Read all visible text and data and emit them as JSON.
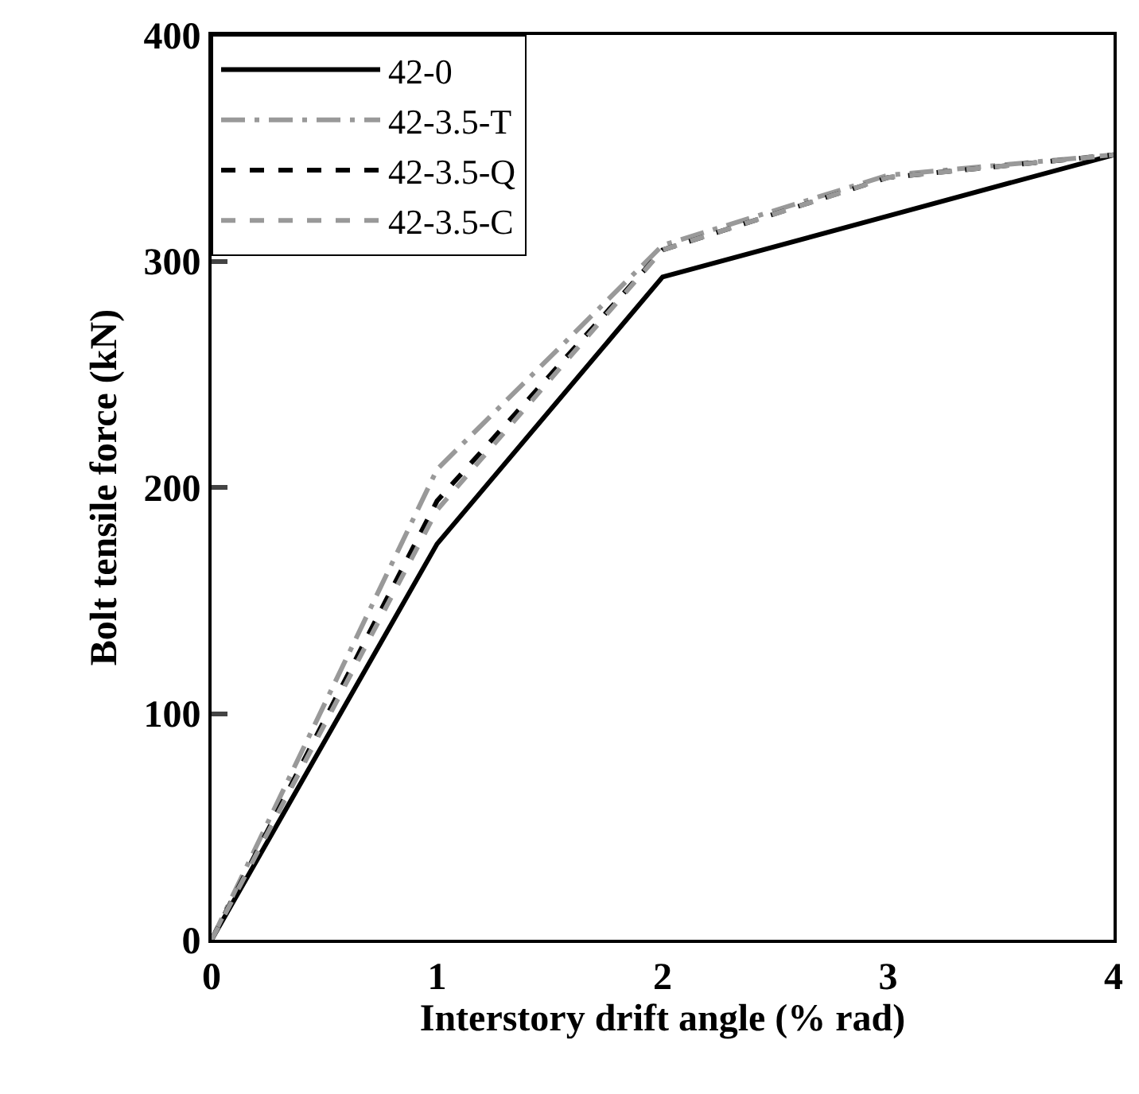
{
  "chart_data": {
    "type": "line",
    "xlabel": "Interstory drift angle (% rad)",
    "ylabel": "Bolt tensile force (kN)",
    "x": [
      0,
      1,
      2,
      3,
      4
    ],
    "xlim": [
      0,
      4
    ],
    "xticks": [
      0,
      1,
      2,
      3,
      4
    ],
    "ylim": [
      0,
      400
    ],
    "yticks": [
      0,
      100,
      200,
      300,
      400
    ],
    "legend": "top left",
    "marker": "none",
    "series": [
      {
        "name": "42-0",
        "color": "#000000",
        "line_style": "solid",
        "values": [
          0,
          175,
          293,
          320,
          347
        ]
      },
      {
        "name": "42-3.5-T",
        "color": "#999999",
        "line_style": "dashdot",
        "values": [
          0,
          208,
          307,
          338,
          347
        ]
      },
      {
        "name": "42-3.5-Q",
        "color": "#000000",
        "line_style": "dashed",
        "values": [
          0,
          194,
          305,
          337,
          347
        ]
      },
      {
        "name": "42-3.5-C",
        "color": "#999999",
        "line_style": "dashed",
        "values": [
          0,
          190,
          305,
          337,
          347
        ]
      }
    ]
  }
}
